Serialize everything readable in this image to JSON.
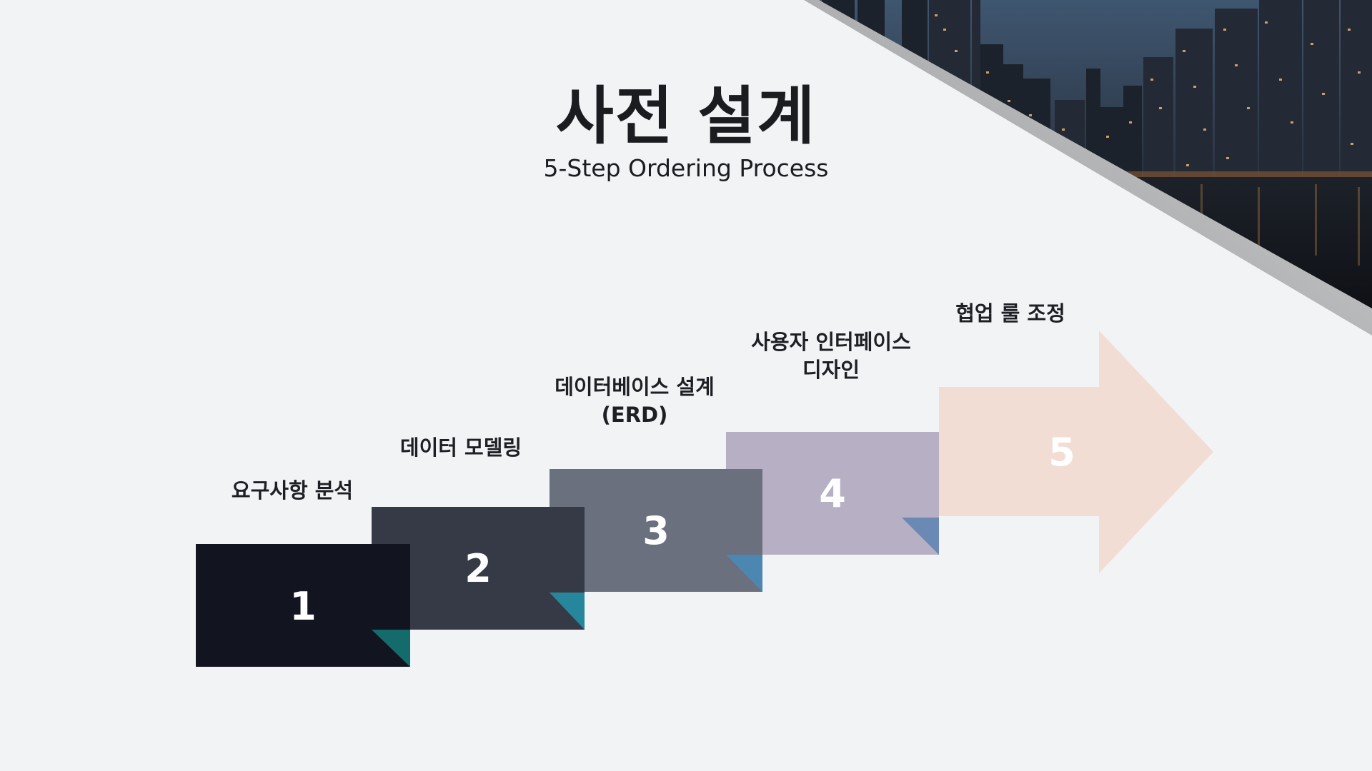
{
  "slide": {
    "title": "사전 설계",
    "subtitle": "5-Step Ordering Process"
  },
  "steps": [
    {
      "number": "1",
      "label": "요구사항 분석",
      "color": "#12141f",
      "fold_color": "#136c6b"
    },
    {
      "number": "2",
      "label": "데이터 모델링",
      "color": "#363a47",
      "fold_color": "#26879c"
    },
    {
      "number": "3",
      "label": "데이터베이스 설계\n(ERD)",
      "color": "#6b707f",
      "fold_color": "#4c87b1"
    },
    {
      "number": "4",
      "label": "사용자 인터페이스\n디자인",
      "color": "#b7afc4",
      "fold_color": "#6a89b5"
    },
    {
      "number": "5",
      "label": "협업 룰 조정",
      "color": "#f2ddd4"
    }
  ],
  "photo": {
    "subject": "night-city-skyline-icon"
  }
}
